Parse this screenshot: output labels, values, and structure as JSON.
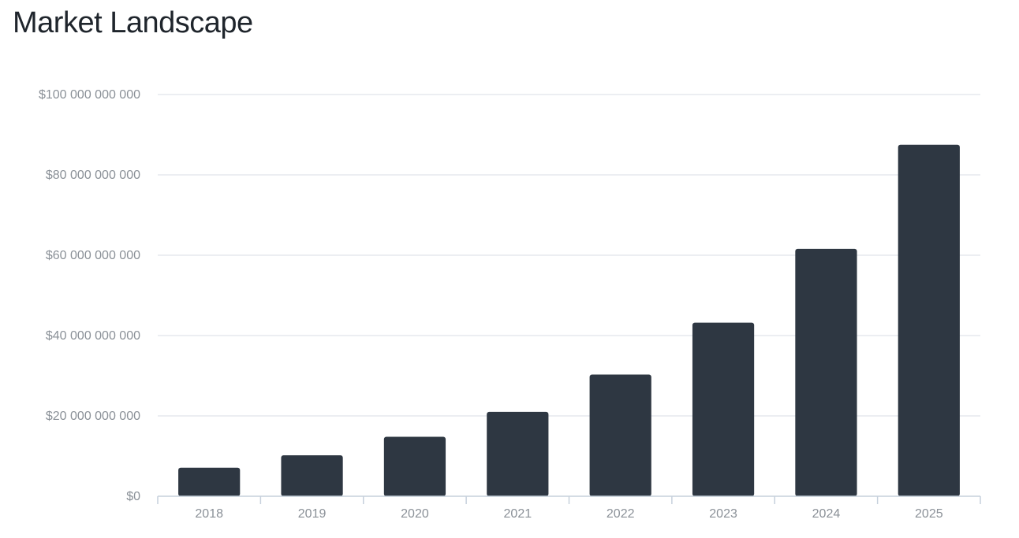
{
  "page": {
    "title": "Market Landscape"
  },
  "colors": {
    "bar": "#2e3742",
    "grid": "#d8dee6",
    "axis": "#c6d0dc",
    "tick_text": "#8a9097"
  },
  "chart_data": {
    "type": "bar",
    "title": "Market Landscape",
    "xlabel": "",
    "ylabel": "",
    "categories": [
      "2018",
      "2019",
      "2020",
      "2021",
      "2022",
      "2023",
      "2024",
      "2025"
    ],
    "values": [
      7100000000,
      10200000000,
      14800000000,
      21000000000,
      30300000000,
      43200000000,
      61600000000,
      87500000000
    ],
    "ylim": [
      0,
      100000000000
    ],
    "yticks": [
      0,
      20000000000,
      40000000000,
      60000000000,
      80000000000,
      100000000000
    ],
    "ytick_labels": [
      "$0",
      "$20 000 000 000",
      "$40 000 000 000",
      "$60 000 000 000",
      "$80 000 000 000",
      "$100 000 000 000"
    ],
    "grid": true,
    "legend": "none"
  }
}
